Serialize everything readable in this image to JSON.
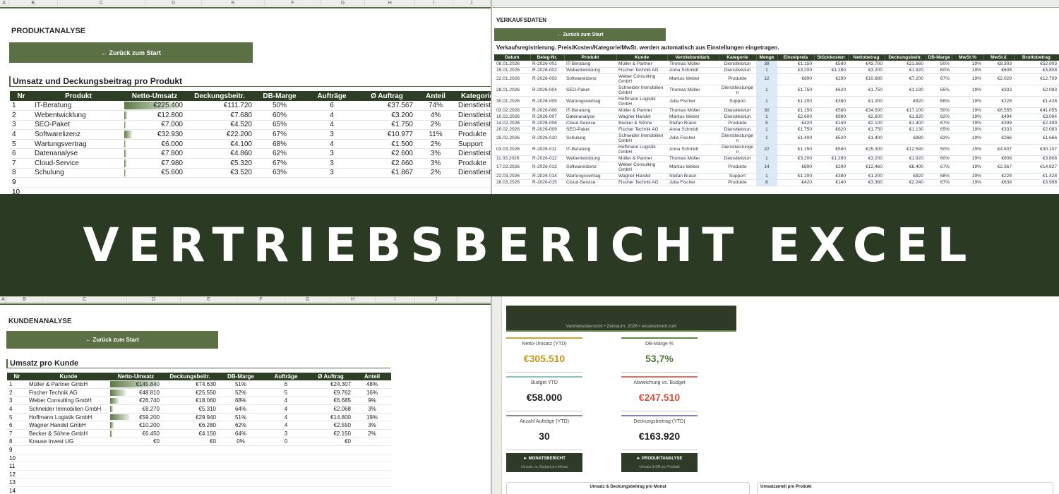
{
  "produktanalyse": {
    "columns": [
      "A",
      "B",
      "C",
      "D",
      "E",
      "F",
      "G",
      "H",
      "I",
      "J"
    ],
    "title": "PRODUKTANALYSE",
    "back_button": "← Zurück zum Start",
    "table_title": "Umsatz und Deckungsbeitrag pro Produkt",
    "headers": [
      "Nr",
      "Produkt",
      "Netto-Umsatz",
      "Deckungsbeitr.",
      "DB-Marge",
      "Aufträge",
      "Ø Auftrag",
      "Anteil",
      "Kategorie"
    ],
    "rows": [
      [
        "1",
        "IT-Beratung",
        "€225.400",
        "€111.720",
        "50%",
        "6",
        "€37.567",
        "74%",
        "Dienstleistungen"
      ],
      [
        "2",
        "Webentwicklung",
        "€12.800",
        "€7.680",
        "60%",
        "4",
        "€3.200",
        "4%",
        "Dienstleistungen"
      ],
      [
        "3",
        "SEO-Paket",
        "€7.000",
        "€4.520",
        "65%",
        "4",
        "€1.750",
        "2%",
        "Dienstleistungen"
      ],
      [
        "4",
        "Softwarelizenz",
        "€32.930",
        "€22.200",
        "67%",
        "3",
        "€10.977",
        "11%",
        "Produkte"
      ],
      [
        "5",
        "Wartungsvertrag",
        "€6.000",
        "€4.100",
        "68%",
        "4",
        "€1.500",
        "2%",
        "Support"
      ],
      [
        "6",
        "Datenanalyse",
        "€7.800",
        "€4.860",
        "62%",
        "3",
        "€2.600",
        "3%",
        "Dienstleistungen"
      ],
      [
        "7",
        "Cloud-Service",
        "€7.980",
        "€5.320",
        "67%",
        "3",
        "€2.660",
        "3%",
        "Produkte"
      ],
      [
        "8",
        "Schulung",
        "€5.600",
        "€3.520",
        "63%",
        "3",
        "€1.867",
        "2%",
        "Dienstleistungen"
      ]
    ],
    "empty_rows": [
      "9",
      "10"
    ]
  },
  "verkaufsdaten": {
    "title": "VERKAUFSDATEN",
    "back_button": "← Zurück zum Start",
    "subtitle": "Verkaufsregistrierung. Preis/Kosten/Kategorie/MwSt. werden automatisch aus Einstellungen eingetragen.",
    "headers": [
      "Datum",
      "Beleg-Nr.",
      "Produkt",
      "Kunde",
      "Vertriebsmitarb.",
      "Kategorie",
      "Menge",
      "Einzelpreis",
      "Stückkosten",
      "Nettobetrag",
      "Deckungsbeitr.",
      "DB-Marge",
      "MwSt.%",
      "MwSt.€",
      "Bruttobetrag"
    ],
    "rows": [
      [
        "08.01.2026",
        "R-2026-001",
        "IT-Beratung",
        "Müller & Partner",
        "Thomas Müller",
        "Dienstleistun",
        "38",
        "€1.150",
        "€580",
        "€43.700",
        "€21.660",
        "50%",
        "19%",
        "€8.303",
        "€52.003"
      ],
      [
        "15.01.2026",
        "R-2026-002",
        "Webentwicklung",
        "Fischer Technik AG",
        "Anna Schmidt",
        "Dienstleistun",
        "1",
        "€3.200",
        "€1.280",
        "€3.200",
        "€1.920",
        "60%",
        "19%",
        "€608",
        "€3.808"
      ],
      [
        "22.01.2026",
        "R-2026-003",
        "Softwarelizenz",
        "Weber Consulting GmbH",
        "Markus Weber",
        "Produkte",
        "12",
        "€890",
        "€290",
        "€10.680",
        "€7.200",
        "67%",
        "19%",
        "€2.029",
        "€12.709"
      ],
      [
        "28.01.2026",
        "R-2026-004",
        "SEO-Paket",
        "Schneider Immobilien GmbH",
        "Thomas Müller",
        "Dienstleistungen",
        "1",
        "€1.750",
        "€620",
        "€1.750",
        "€1.130",
        "65%",
        "19%",
        "€333",
        "€2.083"
      ],
      [
        "30.01.2026",
        "R-2026-005",
        "Wartungsvertrag",
        "Hoffmann Logistik GmbH",
        "Julia Fischer",
        "Support",
        "1",
        "€1.200",
        "€380",
        "€1.200",
        "€820",
        "68%",
        "19%",
        "€228",
        "€1.428"
      ],
      [
        "03.02.2026",
        "R-2026-006",
        "IT-Beratung",
        "Müller & Partner",
        "Thomas Müller",
        "Dienstleistun",
        "30",
        "€1.150",
        "€580",
        "€34.500",
        "€17.100",
        "50%",
        "19%",
        "€6.555",
        "€41.055"
      ],
      [
        "10.02.2026",
        "R-2026-007",
        "Datenanalyse",
        "Wagner Handel",
        "Markus Weber",
        "Dienstleistun",
        "1",
        "€2.600",
        "€980",
        "€2.600",
        "€1.620",
        "62%",
        "19%",
        "€494",
        "€3.094"
      ],
      [
        "14.02.2026",
        "R-2026-008",
        "Cloud-Service",
        "Becker & Söhne",
        "Stefan Braun",
        "Produkte",
        "5",
        "€420",
        "€140",
        "€2.100",
        "€1.400",
        "67%",
        "19%",
        "€399",
        "€2.499"
      ],
      [
        "20.02.2026",
        "R-2026-009",
        "SEO-Paket",
        "Fischer Technik AG",
        "Anna Schmidt",
        "Dienstleistun",
        "1",
        "€1.750",
        "€620",
        "€1.750",
        "€1.130",
        "65%",
        "19%",
        "€333",
        "€2.083"
      ],
      [
        "25.02.2026",
        "R-2026-010",
        "Schulung",
        "Schneider Immobilien GmbH",
        "Julia Fischer",
        "Dienstleistungen",
        "1",
        "€1.400",
        "€520",
        "€1.400",
        "€880",
        "63%",
        "19%",
        "€266",
        "€1.666"
      ],
      [
        "03.03.2026",
        "R-2026-011",
        "IT-Beratung",
        "Hoffmann Logistik GmbH",
        "Anna Schmidt",
        "Dienstleistungen",
        "22",
        "€1.150",
        "€580",
        "€25.300",
        "€12.540",
        "50%",
        "19%",
        "€4.807",
        "€30.107"
      ],
      [
        "11.03.2026",
        "R-2026-012",
        "Webentwicklung",
        "Müller & Partner",
        "Thomas Müller",
        "Dienstleistun",
        "1",
        "€3.200",
        "€1.280",
        "€3.200",
        "€1.920",
        "60%",
        "19%",
        "€608",
        "€3.808"
      ],
      [
        "17.03.2026",
        "R-2026-013",
        "Softwarelizenz",
        "Weber Consulting GmbH",
        "Markus Weber",
        "Produkte",
        "14",
        "€890",
        "€290",
        "€12.460",
        "€8.400",
        "67%",
        "19%",
        "€2.367",
        "€14.827"
      ],
      [
        "22.03.2026",
        "R-2026-014",
        "Wartungsvertrag",
        "Wagner Handel",
        "Stefan Braun",
        "Support",
        "1",
        "€1.200",
        "€380",
        "€1.200",
        "€820",
        "68%",
        "19%",
        "€228",
        "€1.428"
      ],
      [
        "28.03.2026",
        "R-2026-015",
        "Cloud-Service",
        "Fischer Technik AG",
        "Julia Fischer",
        "Produkte",
        "8",
        "€420",
        "€140",
        "€3.360",
        "€2.240",
        "67%",
        "19%",
        "€638",
        "€3.998"
      ]
    ]
  },
  "banner": {
    "title": "VERTRIEBSBERICHT EXCEL"
  },
  "kundenanalyse": {
    "columns": [
      "A",
      "B",
      "C",
      "D",
      "E",
      "F",
      "G",
      "H",
      "I",
      "J"
    ],
    "title": "KUNDENANALYSE",
    "back_button": "← Zurück zum Start",
    "table_title": "Umsatz pro Kunde",
    "headers": [
      "Nr",
      "Kunde",
      "Netto-Umsatz",
      "Deckungsbeitr.",
      "DB-Marge",
      "Aufträge",
      "Ø Auftrag",
      "Anteil"
    ],
    "rows": [
      [
        "1",
        "Müller & Partner GmbH",
        "€145.840",
        "€74.630",
        "51%",
        "6",
        "€24.307",
        "48%"
      ],
      [
        "2",
        "Fischer Technik AG",
        "€48.810",
        "€25.550",
        "52%",
        "5",
        "€9.762",
        "16%"
      ],
      [
        "3",
        "Weber Consulting GmbH",
        "€26.740",
        "€18.060",
        "68%",
        "4",
        "€6.685",
        "9%"
      ],
      [
        "4",
        "Schneider Immobilien GmbH",
        "€8.270",
        "€5.310",
        "64%",
        "4",
        "€2.068",
        "3%"
      ],
      [
        "5",
        "Hoffmann Logistik GmbH",
        "€59.200",
        "€29.940",
        "51%",
        "4",
        "€14.800",
        "19%"
      ],
      [
        "6",
        "Wagner Handel GmbH",
        "€10.200",
        "€6.280",
        "62%",
        "4",
        "€2.550",
        "3%"
      ],
      [
        "7",
        "Becker & Söhne GmbH",
        "€6.450",
        "€4.150",
        "64%",
        "3",
        "€2.150",
        "2%"
      ],
      [
        "8",
        "Krause Invest UG",
        "€0",
        "€0",
        "0%",
        "0",
        "€0"
      ]
    ],
    "empty_rows": [
      "9",
      "10",
      "11",
      "12",
      "13",
      "14"
    ]
  },
  "dashboard": {
    "header": "Vertriebsübersicht • Zeitraum: 2026 • excelschnell.com",
    "kpis": [
      {
        "label": "Netto-Umsatz (YTD)",
        "value": "€305.510",
        "color": "#c8961e",
        "accent": "#c8a53a"
      },
      {
        "label": "DB-Marge %",
        "value": "53,7%",
        "color": "#4f7a34",
        "accent": "#5c8a3e"
      },
      {
        "label": "Budget YTD",
        "value": "€58.000",
        "color": "#1e1e1e",
        "accent": "#7fc9c0"
      },
      {
        "label": "Abweichung vs. Budget",
        "value": "€247.510",
        "color": "#d9503a",
        "accent": "#e07060"
      },
      {
        "label": "Anzahl Aufträge (YTD)",
        "value": "30",
        "color": "#1e1e1e",
        "accent": "#8a8a8a"
      },
      {
        "label": "Deckungsbeitrag (YTD)",
        "value": "€163.920",
        "color": "#1e1e1e",
        "accent": "#8d7db5"
      }
    ],
    "buttons": [
      {
        "label": "► MONATSBERICHT",
        "sub": "Umsatz vs. Budget pro Monat"
      },
      {
        "label": "► PRODUKTANALYSE",
        "sub": "Umsatz & DB pro Produkt"
      }
    ],
    "charts": [
      "Umsatz & Deckungsbeitrag pro Monat",
      "Umsatzanteil pro Produkt"
    ]
  }
}
